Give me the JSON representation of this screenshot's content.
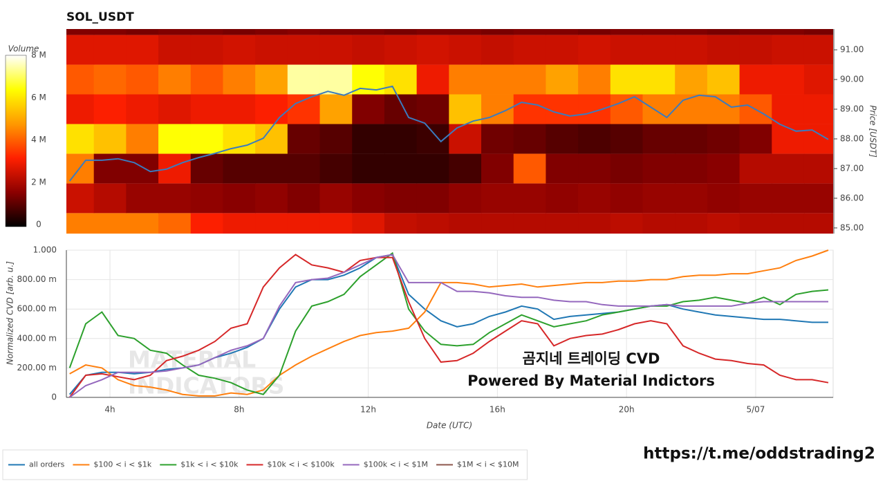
{
  "chart_data": [
    {
      "type": "heatmap",
      "title": "SOL_USDT",
      "x": [
        3,
        4,
        5,
        6,
        7,
        8,
        9,
        10,
        11,
        12,
        13,
        14,
        15,
        16,
        17,
        18,
        19,
        20,
        21,
        22,
        23,
        24,
        25,
        26
      ],
      "y": [
        85,
        86,
        87,
        88,
        89,
        90,
        91,
        92
      ],
      "z": [
        [
          4.5,
          4.5,
          4.5,
          4.2,
          3.2,
          3,
          3,
          3,
          3,
          2.8,
          2.4,
          2.3,
          2.2,
          2.2,
          2.2,
          2.2,
          2.2,
          2.3,
          2.2,
          2.2,
          2.3,
          2.2,
          2.2,
          2.2
        ],
        [
          2.5,
          2.2,
          1.8,
          1.8,
          1.7,
          1.6,
          1.7,
          1.5,
          1.8,
          1.6,
          1.5,
          1.5,
          1.7,
          1.8,
          1.8,
          1.7,
          1.8,
          1.7,
          1.8,
          1.8,
          1.7,
          1.8,
          1.8,
          1.8
        ],
        [
          4.5,
          1.5,
          1.5,
          3,
          1.2,
          1,
          1,
          1,
          0.8,
          0.6,
          0.6,
          0.6,
          0.8,
          1.5,
          4,
          1.5,
          1.5,
          1.4,
          1.5,
          1.5,
          1.6,
          2.2,
          2.2,
          2.2
        ],
        [
          6,
          5.5,
          4.5,
          6.5,
          6.5,
          6,
          5.5,
          1.2,
          1,
          0.6,
          0.6,
          0.7,
          2.5,
          1.3,
          1.2,
          1,
          0.9,
          1,
          1.2,
          1.2,
          1.3,
          1.5,
          3,
          3
        ],
        [
          3,
          3.2,
          3,
          2.8,
          3,
          3,
          3.2,
          3.5,
          5,
          1.5,
          1.2,
          1.3,
          5.5,
          4.5,
          3.5,
          3.5,
          3.5,
          4,
          4.5,
          4.5,
          4.5,
          4,
          3,
          3
        ],
        [
          4,
          4.2,
          4,
          4.5,
          4,
          4.5,
          5,
          7.5,
          7.5,
          6.5,
          6,
          3,
          4.5,
          4.5,
          4.5,
          5,
          4.5,
          6,
          6,
          5,
          5.5,
          3,
          3,
          2.8
        ],
        [
          2.8,
          2.8,
          2.8,
          2.5,
          2.5,
          2.6,
          2.5,
          2.5,
          2.5,
          2.4,
          2.5,
          2.6,
          2.5,
          2.4,
          2.5,
          2.5,
          2.6,
          2.5,
          2.5,
          2.5,
          2.4,
          2.4,
          2.5,
          2.5
        ],
        [
          1.5,
          1.5,
          1.4,
          1.5,
          1.5,
          1.4,
          1.5,
          1.6,
          1.5,
          1.5,
          1.4,
          1.5,
          1.5,
          1.4,
          1.5,
          1.5,
          1.4,
          1.5,
          1.5,
          1.5,
          1.4,
          1.5,
          1.5,
          1.4
        ]
      ],
      "zlabel": "Volume",
      "zlim": [
        0,
        8.1
      ],
      "zticks": [
        0,
        {
          "value": 2,
          "label": "2 M"
        },
        {
          "value": 4,
          "label": "4 M"
        },
        {
          "value": 6,
          "label": "6 M"
        },
        {
          "value": 8,
          "label": "8 M"
        }
      ],
      "colorscale": [
        "#000000",
        "#8b0000",
        "#ff2000",
        "#ff9900",
        "#ffff00",
        "#ffffff"
      ],
      "xlim": [
        2.65,
        26.4
      ],
      "ylim": [
        84.81,
        91.7
      ],
      "yticks": [
        {
          "value": 85,
          "label": "85.00"
        },
        {
          "value": 86,
          "label": "86.00"
        },
        {
          "value": 87,
          "label": "87.00"
        },
        {
          "value": 88,
          "label": "88.00"
        },
        {
          "value": 89,
          "label": "89.00"
        },
        {
          "value": 90,
          "label": "90.00"
        },
        {
          "value": 91,
          "label": "91.00"
        }
      ],
      "ylabel": "Price [USDT]",
      "price_line": {
        "color": "#3a7bbf",
        "x": [
          2.75,
          3.25,
          3.75,
          4.25,
          4.75,
          5.25,
          5.75,
          6.25,
          6.75,
          7.25,
          7.75,
          8.25,
          8.75,
          9.25,
          9.75,
          10.25,
          10.75,
          11.25,
          11.75,
          12.25,
          12.75,
          13.25,
          13.75,
          14.25,
          14.75,
          15.25,
          15.75,
          16.25,
          16.75,
          17.25,
          17.75,
          18.25,
          18.75,
          19.25,
          19.75,
          20.25,
          20.75,
          21.25,
          21.75,
          22.25,
          22.75,
          23.25,
          23.75,
          24.25,
          24.75,
          25.25,
          25.75,
          26.25
        ],
        "values": [
          86.58,
          87.28,
          87.28,
          87.33,
          87.2,
          86.9,
          86.98,
          87.2,
          87.37,
          87.51,
          87.67,
          87.79,
          88.02,
          88.72,
          89.19,
          89.42,
          89.6,
          89.47,
          89.7,
          89.65,
          89.77,
          88.72,
          88.53,
          87.91,
          88.37,
          88.6,
          88.72,
          88.95,
          89.23,
          89.14,
          88.91,
          88.77,
          88.84,
          89.0,
          89.19,
          89.42,
          89.07,
          88.72,
          89.3,
          89.47,
          89.42,
          89.07,
          89.14,
          88.84,
          88.49,
          88.26,
          88.3,
          87.98
        ]
      }
    },
    {
      "type": "line",
      "x": [
        2.75,
        3.25,
        3.75,
        4.25,
        4.75,
        5.25,
        5.75,
        6.25,
        6.75,
        7.25,
        7.75,
        8.25,
        8.75,
        9.25,
        9.75,
        10.25,
        10.75,
        11.25,
        11.75,
        12.25,
        12.75,
        13.25,
        13.75,
        14.25,
        14.75,
        15.25,
        15.75,
        16.25,
        16.75,
        17.25,
        17.75,
        18.25,
        18.75,
        19.25,
        19.75,
        20.25,
        20.75,
        21.25,
        21.75,
        22.25,
        22.75,
        23.25,
        23.75,
        24.25,
        24.75,
        25.25,
        25.75,
        26.25
      ],
      "series": [
        {
          "name": "all orders",
          "color": "#1f77b4",
          "values": [
            0.02,
            0.15,
            0.17,
            0.17,
            0.16,
            0.17,
            0.19,
            0.2,
            0.22,
            0.27,
            0.3,
            0.34,
            0.4,
            0.6,
            0.75,
            0.8,
            0.8,
            0.83,
            0.88,
            0.95,
            0.97,
            0.7,
            0.6,
            0.52,
            0.48,
            0.5,
            0.55,
            0.58,
            0.62,
            0.6,
            0.53,
            0.55,
            0.56,
            0.57,
            0.58,
            0.6,
            0.62,
            0.63,
            0.6,
            0.58,
            0.56,
            0.55,
            0.54,
            0.53,
            0.53,
            0.52,
            0.51,
            0.51
          ]
        },
        {
          "name": "$100 < i < $1k",
          "color": "#ff7f0e",
          "values": [
            0.16,
            0.22,
            0.2,
            0.12,
            0.08,
            0.07,
            0.05,
            0.02,
            0.01,
            0.01,
            0.03,
            0.02,
            0.05,
            0.15,
            0.22,
            0.28,
            0.33,
            0.38,
            0.42,
            0.44,
            0.45,
            0.47,
            0.58,
            0.78,
            0.78,
            0.77,
            0.75,
            0.76,
            0.77,
            0.75,
            0.76,
            0.77,
            0.78,
            0.78,
            0.79,
            0.79,
            0.8,
            0.8,
            0.82,
            0.83,
            0.83,
            0.84,
            0.84,
            0.86,
            0.88,
            0.93,
            0.96,
            1.0
          ]
        },
        {
          "name": "$1k < i < $10k",
          "color": "#2ca02c",
          "values": [
            0.2,
            0.5,
            0.58,
            0.42,
            0.4,
            0.32,
            0.3,
            0.22,
            0.15,
            0.13,
            0.1,
            0.05,
            0.02,
            0.15,
            0.45,
            0.62,
            0.65,
            0.7,
            0.82,
            0.9,
            0.98,
            0.6,
            0.45,
            0.36,
            0.35,
            0.36,
            0.44,
            0.5,
            0.56,
            0.52,
            0.48,
            0.5,
            0.52,
            0.56,
            0.58,
            0.6,
            0.62,
            0.62,
            0.65,
            0.66,
            0.68,
            0.66,
            0.64,
            0.68,
            0.63,
            0.7,
            0.72,
            0.73
          ]
        },
        {
          "name": "$10k < i < $100k",
          "color": "#d62728",
          "values": [
            0.0,
            0.15,
            0.16,
            0.14,
            0.12,
            0.15,
            0.25,
            0.28,
            0.32,
            0.38,
            0.47,
            0.5,
            0.75,
            0.88,
            0.97,
            0.9,
            0.88,
            0.85,
            0.93,
            0.95,
            0.95,
            0.65,
            0.4,
            0.24,
            0.25,
            0.3,
            0.38,
            0.45,
            0.52,
            0.5,
            0.35,
            0.4,
            0.42,
            0.43,
            0.46,
            0.5,
            0.52,
            0.5,
            0.35,
            0.3,
            0.26,
            0.25,
            0.23,
            0.22,
            0.15,
            0.12,
            0.12,
            0.1
          ]
        },
        {
          "name": "$100k < i < $1M",
          "color": "#9467bd",
          "values": [
            0.0,
            0.08,
            0.12,
            0.17,
            0.17,
            0.17,
            0.18,
            0.2,
            0.22,
            0.27,
            0.32,
            0.35,
            0.4,
            0.62,
            0.78,
            0.8,
            0.81,
            0.85,
            0.9,
            0.95,
            0.97,
            0.78,
            0.78,
            0.78,
            0.72,
            0.72,
            0.71,
            0.69,
            0.68,
            0.68,
            0.66,
            0.65,
            0.65,
            0.63,
            0.62,
            0.62,
            0.62,
            0.63,
            0.62,
            0.62,
            0.62,
            0.62,
            0.64,
            0.65,
            0.65,
            0.65,
            0.65,
            0.65
          ]
        },
        {
          "name": "$1M < i < $10M",
          "color": "#8c564b",
          "values": [
            null,
            null,
            null,
            null,
            null,
            null,
            null,
            null,
            null,
            null,
            null,
            null,
            null,
            null,
            null,
            null,
            null,
            null,
            null,
            null,
            null,
            null,
            null,
            null,
            null,
            null,
            null,
            null,
            null,
            null,
            null,
            null,
            null,
            null,
            null,
            null,
            null,
            null,
            null,
            null,
            null,
            null,
            null,
            null,
            null,
            null,
            null,
            null
          ]
        }
      ],
      "xlim": [
        2.65,
        26.4
      ],
      "xticks": [
        {
          "value": 4,
          "label": "4h"
        },
        {
          "value": 8,
          "label": "8h"
        },
        {
          "value": 12,
          "label": "12h"
        },
        {
          "value": 16,
          "label": "16h"
        },
        {
          "value": 20,
          "label": "20h"
        },
        {
          "value": 24,
          "label": "5/07"
        }
      ],
      "ylim": [
        0,
        1
      ],
      "yticks": [
        0,
        {
          "value": 0.2,
          "label": "200.00 m"
        },
        {
          "value": 0.4,
          "label": "400.00 m"
        },
        {
          "value": 0.6,
          "label": "600.00 m"
        },
        {
          "value": 0.8,
          "label": "800.00 m"
        },
        {
          "value": 1,
          "label": "1.000"
        }
      ],
      "xlabel": "Date (UTC)",
      "ylabel": "Normalized CVD [arb. u.]",
      "grid": true,
      "legend": "bottom-left",
      "annotations": [
        "곰지네 트레이딩 CVD",
        "Powered By Material Indictors"
      ],
      "watermark": [
        "MATERIAL",
        "INDICATORS"
      ]
    }
  ],
  "footer": "https://t.me/oddstrading2"
}
